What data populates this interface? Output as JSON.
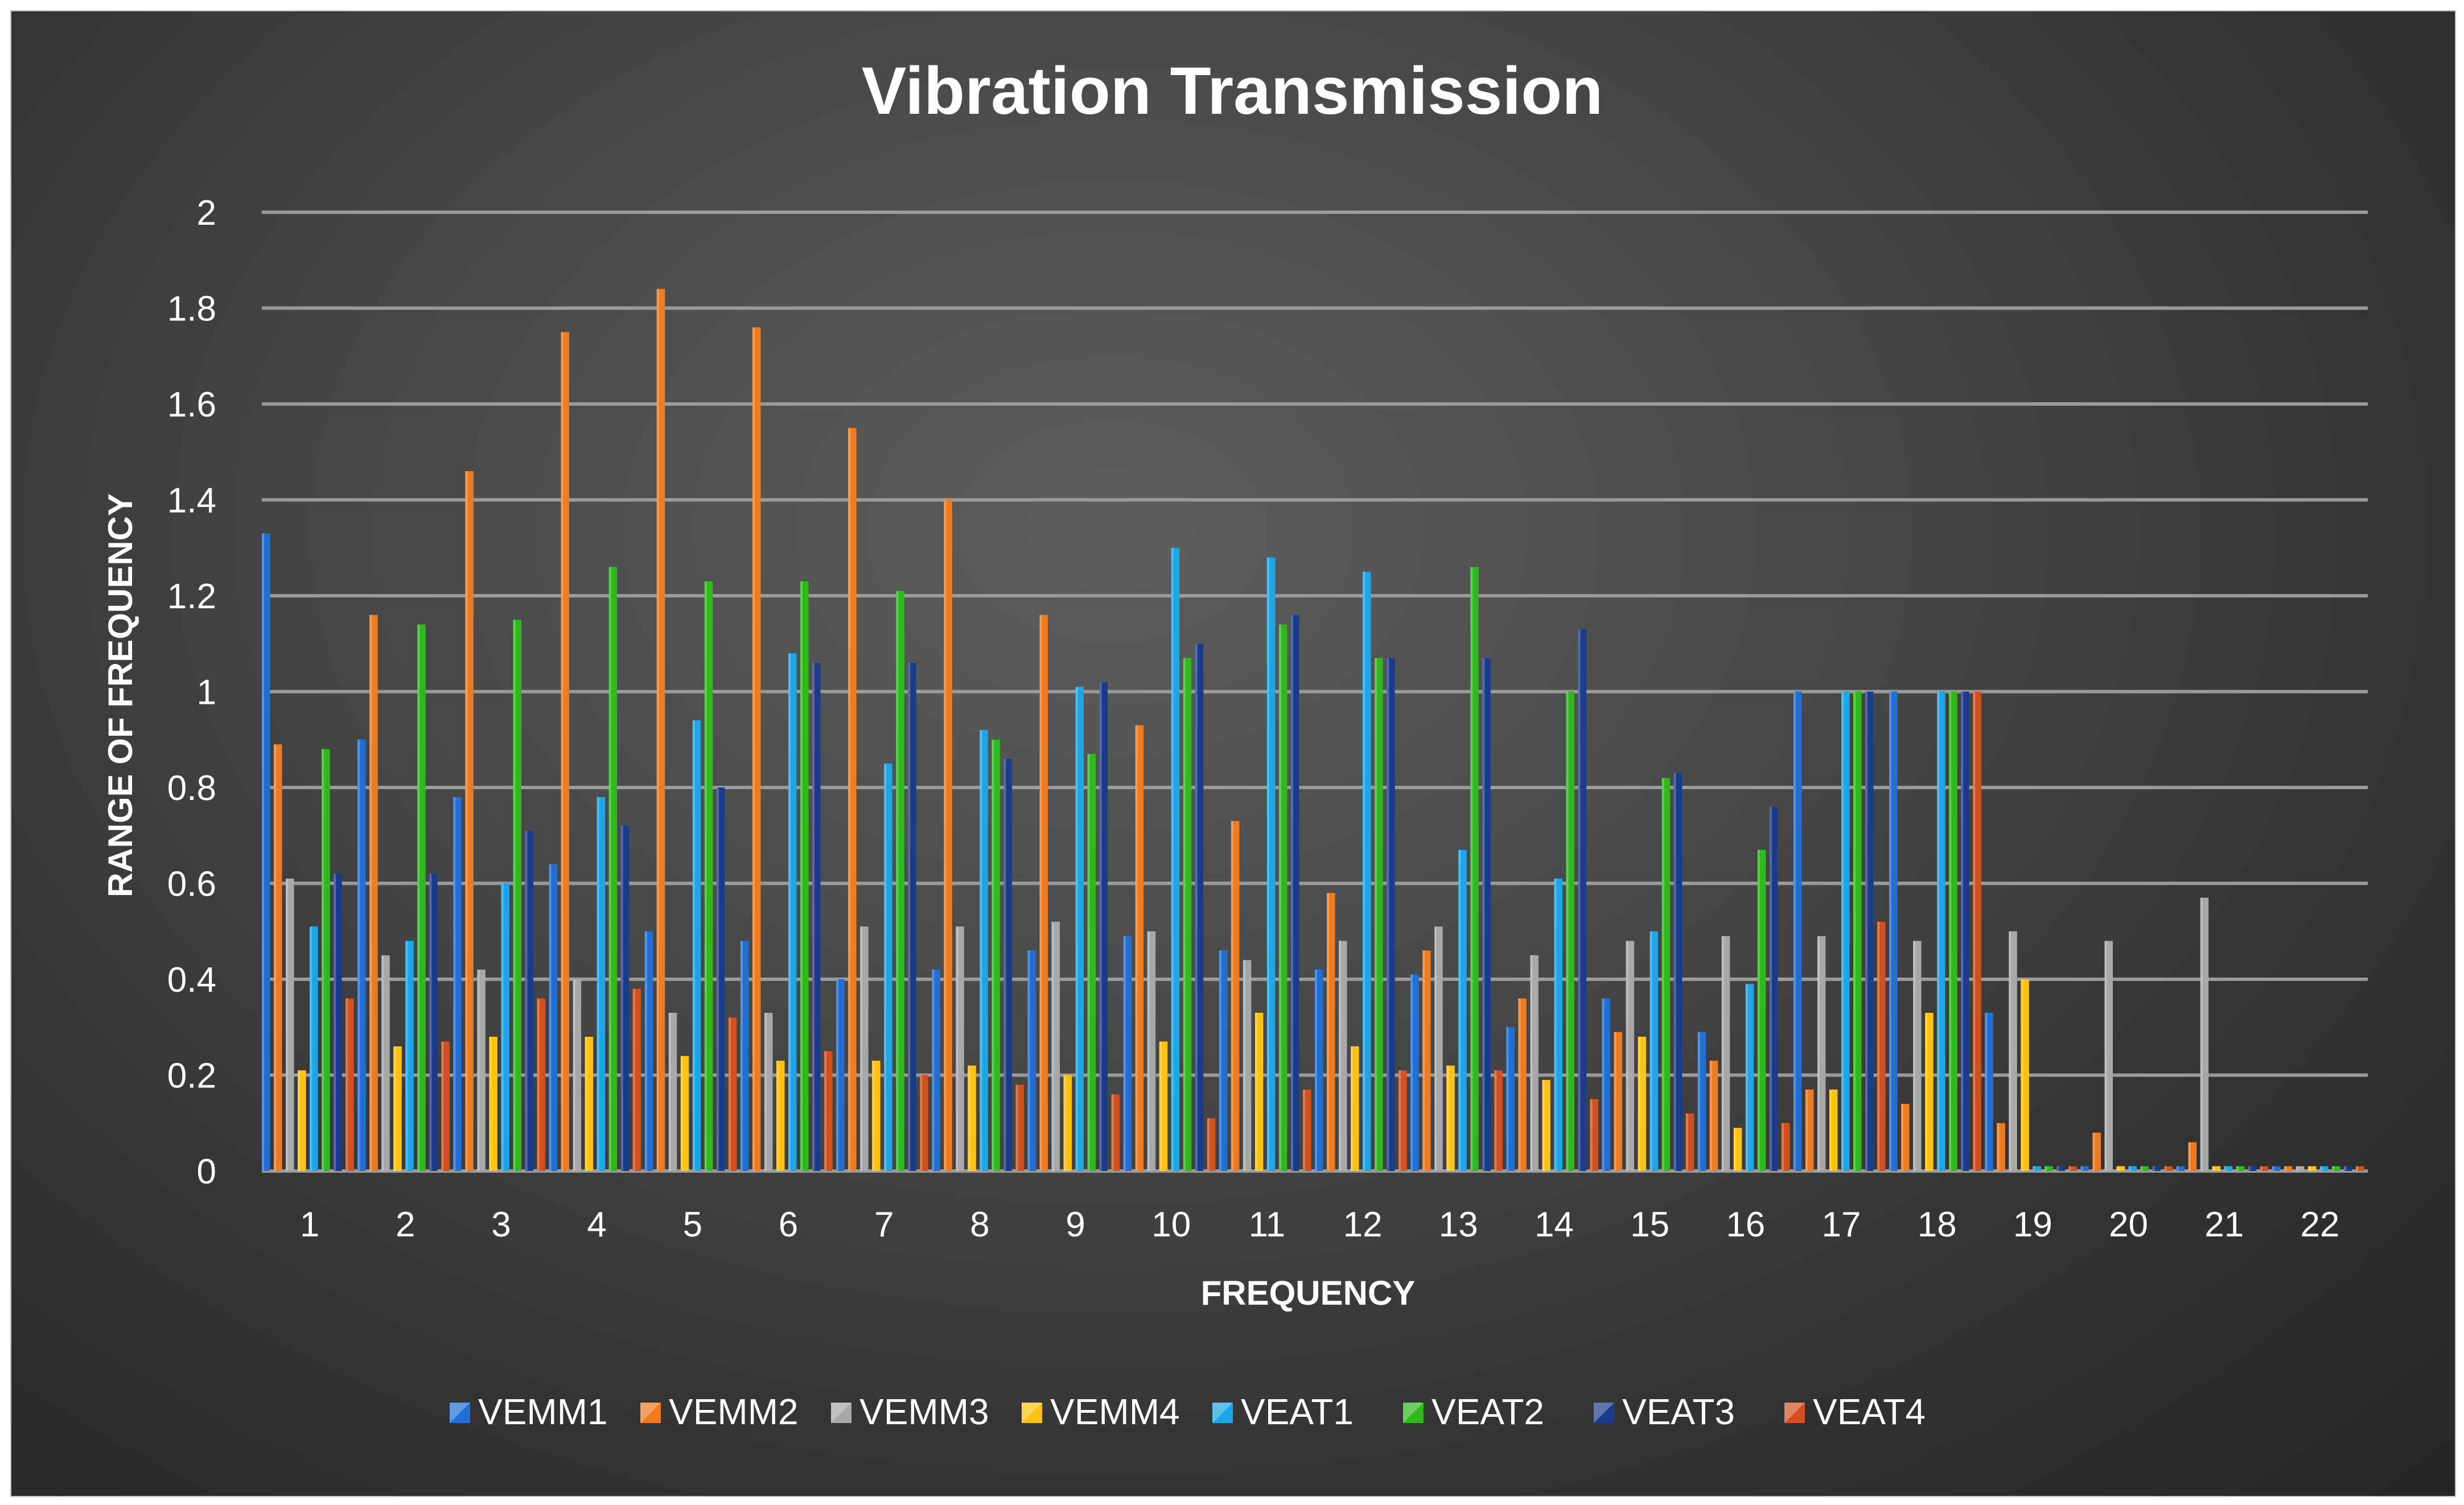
{
  "chart_data": {
    "type": "bar",
    "title": "Vibration Transmission",
    "xlabel": "FREQUENCY",
    "ylabel": "RANGE OF FREQUENCY",
    "ylim": [
      0,
      2
    ],
    "yticks": [
      "0",
      "0.2",
      "0.4",
      "0.6",
      "0.8",
      "1",
      "1.2",
      "1.4",
      "1.6",
      "1.8",
      "2"
    ],
    "grid": true,
    "legend_position": "bottom",
    "categories": [
      "1",
      "2",
      "3",
      "4",
      "5",
      "6",
      "7",
      "8",
      "9",
      "10",
      "11",
      "12",
      "13",
      "14",
      "15",
      "16",
      "17",
      "18",
      "19",
      "20",
      "21",
      "22"
    ],
    "series": [
      {
        "name": "VEMM1",
        "color": "#1f6fd6",
        "values": [
          1.33,
          0.9,
          0.78,
          0.64,
          0.5,
          0.48,
          0.4,
          0.42,
          0.46,
          0.49,
          0.46,
          0.42,
          0.41,
          0.3,
          0.36,
          0.29,
          1.0,
          1.0,
          0.33,
          0.01,
          0.01,
          0.01
        ]
      },
      {
        "name": "VEMM2",
        "color": "#f07a1e",
        "values": [
          0.89,
          1.16,
          1.46,
          1.75,
          1.84,
          1.76,
          1.55,
          1.4,
          1.16,
          0.93,
          0.73,
          0.58,
          0.46,
          0.36,
          0.29,
          0.23,
          0.17,
          0.14,
          0.1,
          0.08,
          0.06,
          0.01
        ]
      },
      {
        "name": "VEMM3",
        "color": "#a8a8a8",
        "values": [
          0.61,
          0.45,
          0.42,
          0.4,
          0.33,
          0.33,
          0.51,
          0.51,
          0.52,
          0.5,
          0.44,
          0.48,
          0.51,
          0.45,
          0.48,
          0.49,
          0.49,
          0.48,
          0.5,
          0.48,
          0.57,
          0.01
        ]
      },
      {
        "name": "VEMM4",
        "color": "#ffc20e",
        "values": [
          0.21,
          0.26,
          0.28,
          0.28,
          0.24,
          0.23,
          0.23,
          0.22,
          0.2,
          0.27,
          0.33,
          0.26,
          0.22,
          0.19,
          0.28,
          0.09,
          0.17,
          0.33,
          0.4,
          0.01,
          0.01,
          0.01
        ]
      },
      {
        "name": "VEAT1",
        "color": "#1ba6e8",
        "values": [
          0.51,
          0.48,
          0.6,
          0.78,
          0.94,
          1.08,
          0.85,
          0.92,
          1.01,
          1.3,
          1.28,
          1.25,
          0.67,
          0.61,
          0.5,
          0.39,
          1.0,
          1.0,
          0.01,
          0.01,
          0.01,
          0.01
        ]
      },
      {
        "name": "VEAT2",
        "color": "#2dbb1c",
        "values": [
          0.88,
          1.14,
          1.15,
          1.26,
          1.23,
          1.23,
          1.21,
          0.9,
          0.87,
          1.07,
          1.14,
          1.07,
          1.26,
          1.0,
          0.82,
          0.67,
          1.0,
          1.0,
          0.01,
          0.01,
          0.01,
          0.01
        ]
      },
      {
        "name": "VEAT3",
        "color": "#1a3c8c",
        "values": [
          0.62,
          0.62,
          0.71,
          0.72,
          0.8,
          1.06,
          1.06,
          0.86,
          1.02,
          1.1,
          1.16,
          1.07,
          1.07,
          1.13,
          0.83,
          0.76,
          1.0,
          1.0,
          0.01,
          0.01,
          0.01,
          0.01
        ]
      },
      {
        "name": "VEAT4",
        "color": "#d4501e",
        "values": [
          0.36,
          0.27,
          0.36,
          0.38,
          0.32,
          0.25,
          0.2,
          0.18,
          0.16,
          0.11,
          0.17,
          0.21,
          0.21,
          0.15,
          0.12,
          0.1,
          0.52,
          1.0,
          0.01,
          0.01,
          0.01,
          0.01
        ]
      }
    ]
  }
}
